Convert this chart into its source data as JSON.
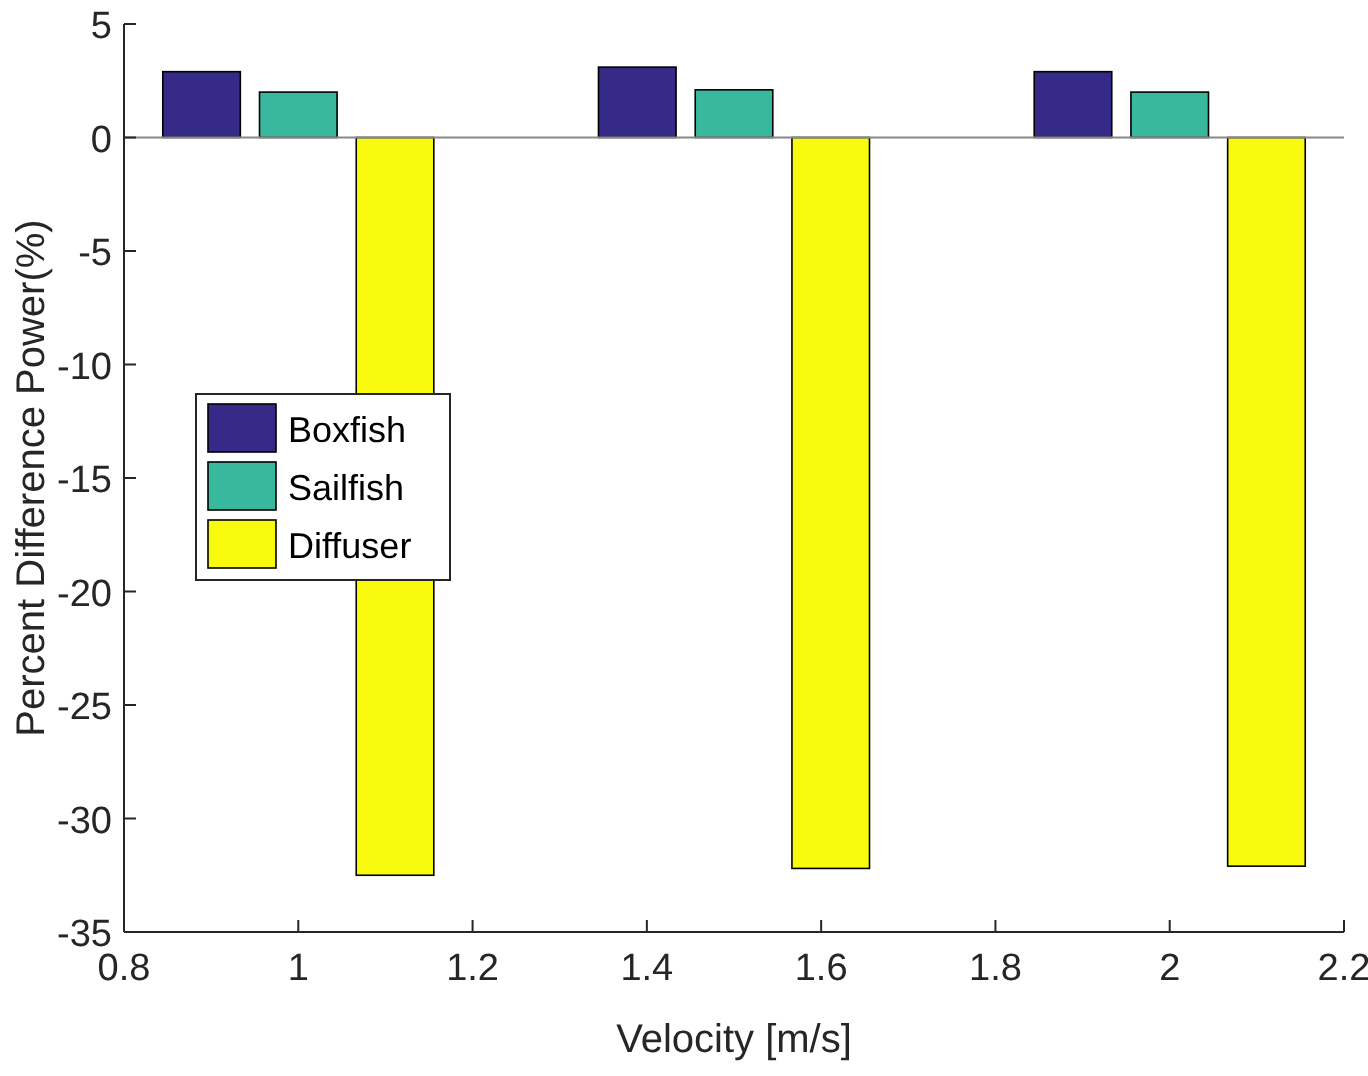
{
  "chart_data": {
    "type": "bar",
    "xlabel": "Velocity [m/s]",
    "ylabel": "Percent Difference Power(%)",
    "x": [
      1,
      1.5,
      2
    ],
    "series": [
      {
        "name": "Boxfish",
        "color": "#352a87",
        "values": [
          2.9,
          3.1,
          2.9
        ]
      },
      {
        "name": "Sailfish",
        "color": "#38b99e",
        "values": [
          2.0,
          2.1,
          2.0
        ]
      },
      {
        "name": "Diffuser",
        "color": "#f9fb0e",
        "values": [
          -32.5,
          -32.2,
          -32.1
        ]
      }
    ],
    "ref_lines": [
      {
        "axis": "y",
        "value": 0,
        "color": "#888888"
      }
    ],
    "xlim": [
      0.8,
      2.2
    ],
    "xticks": [
      0.8,
      1,
      1.2,
      1.4,
      1.6,
      1.8,
      2,
      2.2
    ],
    "ylim": [
      -35,
      5
    ],
    "yticks": [
      -35,
      -30,
      -25,
      -20,
      -15,
      -10,
      -5,
      0,
      5
    ],
    "grid": false,
    "legend": "left"
  }
}
